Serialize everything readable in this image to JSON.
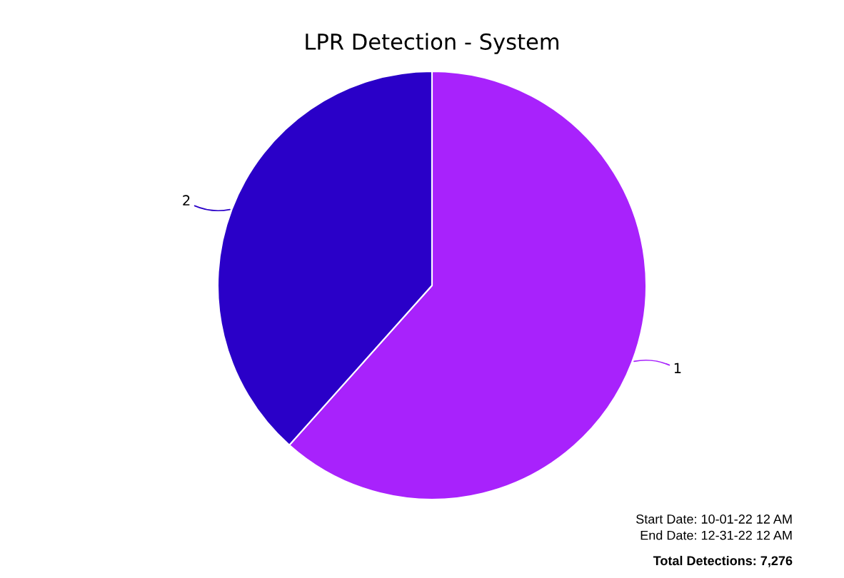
{
  "chart_data": {
    "type": "pie",
    "title": "LPR Detection - System",
    "categories": [
      "1",
      "2"
    ],
    "values": [
      61.6,
      38.4
    ],
    "colors": [
      "#a822fc",
      "#2a00c8"
    ],
    "annotations": [
      "Start Date: 10-01-22 12 AM",
      "End Date: 12-31-22 12 AM",
      "Total Detections: 7,276"
    ]
  }
}
